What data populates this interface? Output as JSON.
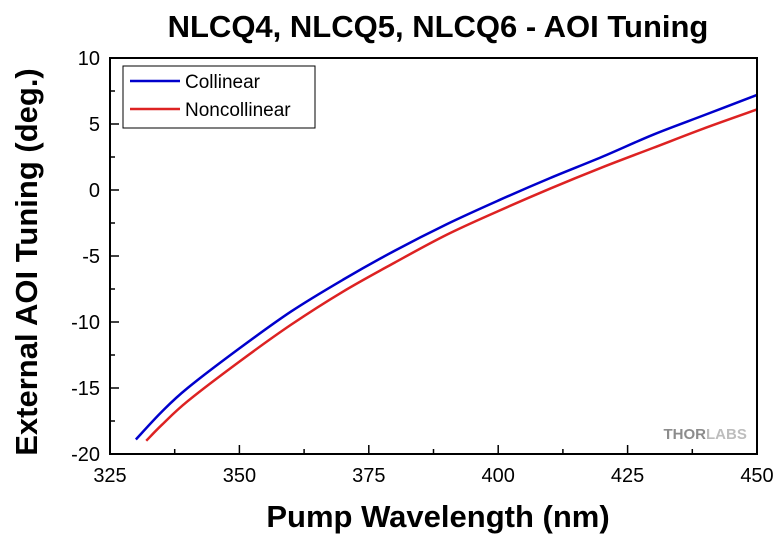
{
  "chart_data": {
    "type": "line",
    "title": "NLCQ4, NLCQ5, NLCQ6 - AOI Tuning",
    "xlabel": "Pump Wavelength (nm)",
    "ylabel": "External AOI Tuning (deg.)",
    "xlim": [
      325,
      450
    ],
    "ylim": [
      -20,
      10
    ],
    "xticks": [
      325,
      350,
      375,
      400,
      425,
      450
    ],
    "yticks": [
      -20,
      -15,
      -10,
      -5,
      0,
      5,
      10
    ],
    "grid": false,
    "legend": "top-left",
    "series": [
      {
        "name": "Collinear",
        "color": "#0000cc",
        "x": [
          330,
          335,
          340,
          350,
          360,
          370,
          380,
          390,
          400,
          410,
          420,
          430,
          440,
          450
        ],
        "y": [
          -18.9,
          -16.8,
          -15.0,
          -12.0,
          -9.2,
          -6.8,
          -4.6,
          -2.6,
          -0.8,
          0.9,
          2.5,
          4.2,
          5.7,
          7.2
        ]
      },
      {
        "name": "Noncollinear",
        "color": "#dd2222",
        "x": [
          332,
          335,
          340,
          350,
          360,
          370,
          380,
          390,
          400,
          410,
          420,
          430,
          440,
          450
        ],
        "y": [
          -19.0,
          -17.8,
          -16.0,
          -13.0,
          -10.2,
          -7.7,
          -5.5,
          -3.4,
          -1.6,
          0.1,
          1.7,
          3.2,
          4.7,
          6.1
        ]
      }
    ]
  },
  "watermark": {
    "part1": "THOR",
    "part2": "LABS"
  }
}
